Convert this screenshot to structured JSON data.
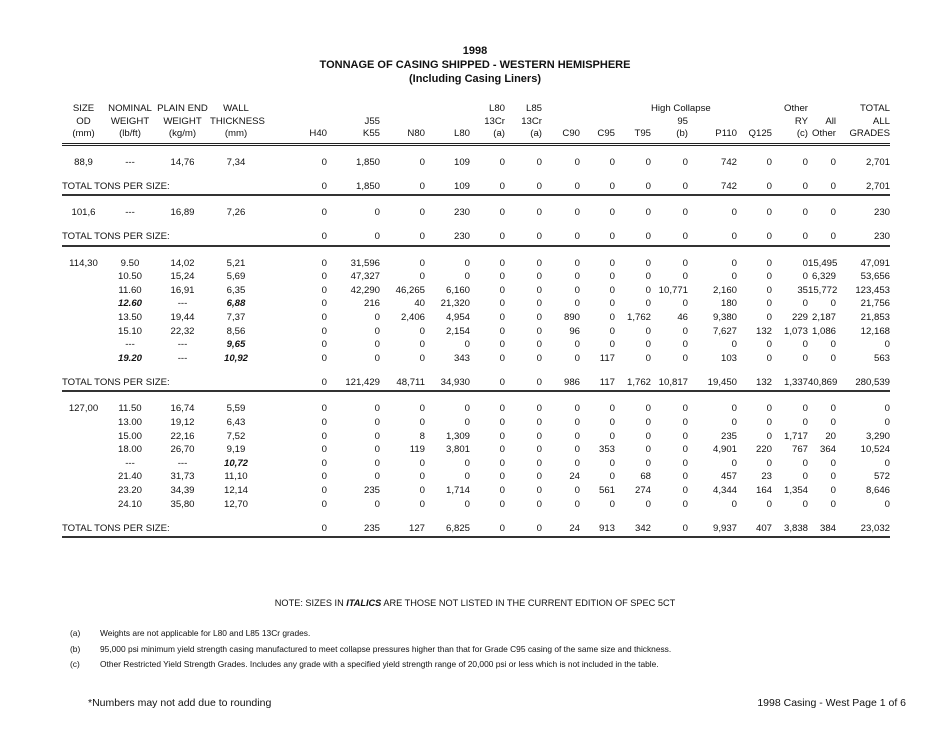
{
  "title": {
    "year": "1998",
    "main": "TONNAGE OF CASING SHIPPED - WESTERN HEMISPHERE",
    "sub": "(Including Casing Liners)"
  },
  "columns": [
    [
      "SIZE",
      "OD",
      "(mm)"
    ],
    [
      "NOMINAL",
      "WEIGHT",
      "(lb/ft)"
    ],
    [
      "PLAIN END",
      "WEIGHT",
      "(kg/m)"
    ],
    [
      "WALL",
      "THICKNESS",
      "(mm)"
    ],
    [
      "",
      "",
      "H40"
    ],
    [
      "",
      "J55",
      "K55"
    ],
    [
      "",
      "",
      "N80"
    ],
    [
      "",
      "",
      "L80"
    ],
    [
      "L80",
      "13Cr",
      "(a)"
    ],
    [
      "L85",
      "13Cr",
      "(a)"
    ],
    [
      "",
      "",
      "C90"
    ],
    [
      "",
      "",
      "C95"
    ],
    [
      "",
      "",
      "T95"
    ],
    [
      "High Collapse",
      "95",
      "(b)"
    ],
    [
      "",
      "",
      "P110"
    ],
    [
      "",
      "",
      "Q125"
    ],
    [
      "Other",
      "RY",
      "(c)"
    ],
    [
      "",
      "All",
      "Other"
    ],
    [
      "TOTAL",
      "ALL",
      "GRADES"
    ]
  ],
  "total_label": "TOTAL TONS PER SIZE:",
  "groups": [
    {
      "size": "88,9",
      "rows": [
        {
          "cells": [
            "---",
            "14,76",
            "7,34",
            "0",
            "1,850",
            "0",
            "109",
            "0",
            "0",
            "0",
            "0",
            "0",
            "0",
            "742",
            "0",
            "0",
            "0",
            "2,701"
          ],
          "italic": []
        }
      ],
      "total": [
        "0",
        "1,850",
        "0",
        "109",
        "0",
        "0",
        "0",
        "0",
        "0",
        "0",
        "742",
        "0",
        "0",
        "0",
        "2,701"
      ]
    },
    {
      "size": "101,6",
      "rows": [
        {
          "cells": [
            "---",
            "16,89",
            "7,26",
            "0",
            "0",
            "0",
            "230",
            "0",
            "0",
            "0",
            "0",
            "0",
            "0",
            "0",
            "0",
            "0",
            "0",
            "230"
          ],
          "italic": []
        }
      ],
      "total": [
        "0",
        "0",
        "0",
        "230",
        "0",
        "0",
        "0",
        "0",
        "0",
        "0",
        "0",
        "0",
        "0",
        "0",
        "230"
      ]
    },
    {
      "size": "114,30",
      "rows": [
        {
          "cells": [
            "9.50",
            "14,02",
            "5,21",
            "0",
            "31,596",
            "0",
            "0",
            "0",
            "0",
            "0",
            "0",
            "0",
            "0",
            "0",
            "0",
            "0",
            "15,495",
            "47,091"
          ],
          "italic": []
        },
        {
          "cells": [
            "10.50",
            "15,24",
            "5,69",
            "0",
            "47,327",
            "0",
            "0",
            "0",
            "0",
            "0",
            "0",
            "0",
            "0",
            "0",
            "0",
            "0",
            "6,329",
            "53,656"
          ],
          "italic": []
        },
        {
          "cells": [
            "11.60",
            "16,91",
            "6,35",
            "0",
            "42,290",
            "46,265",
            "6,160",
            "0",
            "0",
            "0",
            "0",
            "0",
            "10,771",
            "2,160",
            "0",
            "35",
            "15,772",
            "123,453"
          ],
          "italic": []
        },
        {
          "cells": [
            "12.60",
            "---",
            "6,88",
            "0",
            "216",
            "40",
            "21,320",
            "0",
            "0",
            "0",
            "0",
            "0",
            "0",
            "180",
            "0",
            "0",
            "0",
            "21,756"
          ],
          "italic": [
            0,
            2
          ]
        },
        {
          "cells": [
            "13.50",
            "19,44",
            "7,37",
            "0",
            "0",
            "2,406",
            "4,954",
            "0",
            "0",
            "890",
            "0",
            "1,762",
            "46",
            "9,380",
            "0",
            "229",
            "2,187",
            "21,853"
          ],
          "italic": []
        },
        {
          "cells": [
            "15.10",
            "22,32",
            "8,56",
            "0",
            "0",
            "0",
            "2,154",
            "0",
            "0",
            "96",
            "0",
            "0",
            "0",
            "7,627",
            "132",
            "1,073",
            "1,086",
            "12,168"
          ],
          "italic": []
        },
        {
          "cells": [
            "---",
            "---",
            "9,65",
            "0",
            "0",
            "0",
            "0",
            "0",
            "0",
            "0",
            "0",
            "0",
            "0",
            "0",
            "0",
            "0",
            "0",
            "0"
          ],
          "italic": [
            2
          ]
        },
        {
          "cells": [
            "19.20",
            "---",
            "10,92",
            "0",
            "0",
            "0",
            "343",
            "0",
            "0",
            "0",
            "117",
            "0",
            "0",
            "103",
            "0",
            "0",
            "0",
            "563"
          ],
          "italic": [
            0,
            2
          ]
        }
      ],
      "total": [
        "0",
        "121,429",
        "48,711",
        "34,930",
        "0",
        "0",
        "986",
        "117",
        "1,762",
        "10,817",
        "19,450",
        "132",
        "1,337",
        "40,869",
        "280,539"
      ]
    },
    {
      "size": "127,00",
      "rows": [
        {
          "cells": [
            "11.50",
            "16,74",
            "5,59",
            "0",
            "0",
            "0",
            "0",
            "0",
            "0",
            "0",
            "0",
            "0",
            "0",
            "0",
            "0",
            "0",
            "0",
            "0"
          ],
          "italic": []
        },
        {
          "cells": [
            "13.00",
            "19,12",
            "6,43",
            "0",
            "0",
            "0",
            "0",
            "0",
            "0",
            "0",
            "0",
            "0",
            "0",
            "0",
            "0",
            "0",
            "0",
            "0"
          ],
          "italic": []
        },
        {
          "cells": [
            "15.00",
            "22,16",
            "7,52",
            "0",
            "0",
            "8",
            "1,309",
            "0",
            "0",
            "0",
            "0",
            "0",
            "0",
            "235",
            "0",
            "1,717",
            "20",
            "3,290"
          ],
          "italic": []
        },
        {
          "cells": [
            "18.00",
            "26,70",
            "9,19",
            "0",
            "0",
            "119",
            "3,801",
            "0",
            "0",
            "0",
            "353",
            "0",
            "0",
            "4,901",
            "220",
            "767",
            "364",
            "10,524"
          ],
          "italic": []
        },
        {
          "cells": [
            "---",
            "---",
            "10,72",
            "0",
            "0",
            "0",
            "0",
            "0",
            "0",
            "0",
            "0",
            "0",
            "0",
            "0",
            "0",
            "0",
            "0",
            "0"
          ],
          "italic": [
            2
          ]
        },
        {
          "cells": [
            "21.40",
            "31,73",
            "11,10",
            "0",
            "0",
            "0",
            "0",
            "0",
            "0",
            "24",
            "0",
            "68",
            "0",
            "457",
            "23",
            "0",
            "0",
            "572"
          ],
          "italic": []
        },
        {
          "cells": [
            "23.20",
            "34,39",
            "12,14",
            "0",
            "235",
            "0",
            "1,714",
            "0",
            "0",
            "0",
            "561",
            "274",
            "0",
            "4,344",
            "164",
            "1,354",
            "0",
            "8,646"
          ],
          "italic": []
        },
        {
          "cells": [
            "24.10",
            "35,80",
            "12,70",
            "0",
            "0",
            "0",
            "0",
            "0",
            "0",
            "0",
            "0",
            "0",
            "0",
            "0",
            "0",
            "0",
            "0",
            "0"
          ],
          "italic": []
        }
      ],
      "total": [
        "0",
        "235",
        "127",
        "6,825",
        "0",
        "0",
        "24",
        "913",
        "342",
        "0",
        "9,937",
        "407",
        "3,838",
        "384",
        "23,032"
      ]
    }
  ],
  "note": {
    "before": "NOTE: SIZES IN ",
    "italic": "ITALICS",
    "after": " ARE THOSE NOT LISTED IN THE CURRENT EDITION OF SPEC 5CT"
  },
  "footnotes": [
    {
      "label": "(a)",
      "text": "Weights are not applicable for L80 and L85 13Cr grades."
    },
    {
      "label": "(b)",
      "text": "95,000 psi minimum yield strength casing manufactured to meet collapse pressures higher than that for Grade C95 casing of the same size and thickness."
    },
    {
      "label": "(c)",
      "text": "Other Restricted Yield Strength Grades.  Includes any grade with a specified yield strength range of 20,000 psi or less which is not included in the table."
    }
  ],
  "footer": {
    "left": "*Numbers may not add due to rounding",
    "right": "1998 Casing - West  Page 1 of 6"
  }
}
